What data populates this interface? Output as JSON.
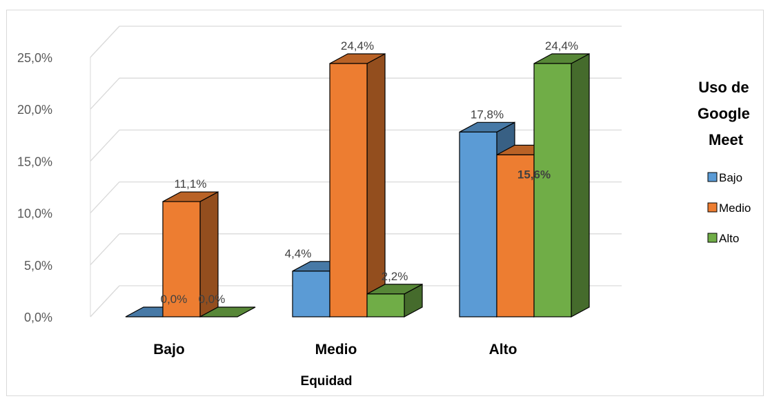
{
  "chart_data": {
    "type": "bar",
    "style": "3d-clustered-column",
    "categories": [
      "Bajo",
      "Medio",
      "Alto"
    ],
    "series": [
      {
        "name": "Bajo",
        "values": [
          0.0,
          4.4,
          17.8
        ],
        "labels": [
          "0,0%",
          "4,4%",
          "17,8%"
        ],
        "color": "#5b9bd5"
      },
      {
        "name": "Medio",
        "values": [
          11.1,
          24.4,
          15.6
        ],
        "labels": [
          "11,1%",
          "24,4%",
          "15,6%"
        ],
        "color": "#ed7d31"
      },
      {
        "name": "Alto",
        "values": [
          0.0,
          2.2,
          24.4
        ],
        "labels": [
          "0,0%",
          "2,2%",
          "24,4%"
        ],
        "color": "#70ad47"
      }
    ],
    "y_ticks": [
      0,
      5,
      10,
      15,
      20,
      25
    ],
    "y_tick_labels": [
      "0,0%",
      "5,0%",
      "10,0%",
      "15,0%",
      "20,0%",
      "25,0%"
    ],
    "ylim": [
      0,
      25
    ],
    "xlabel": "Equidad",
    "ylabel": "",
    "legend_title": "Uso de Google Meet",
    "legend_position": "right",
    "grid": true,
    "grid_color": "#d9d9d9"
  }
}
